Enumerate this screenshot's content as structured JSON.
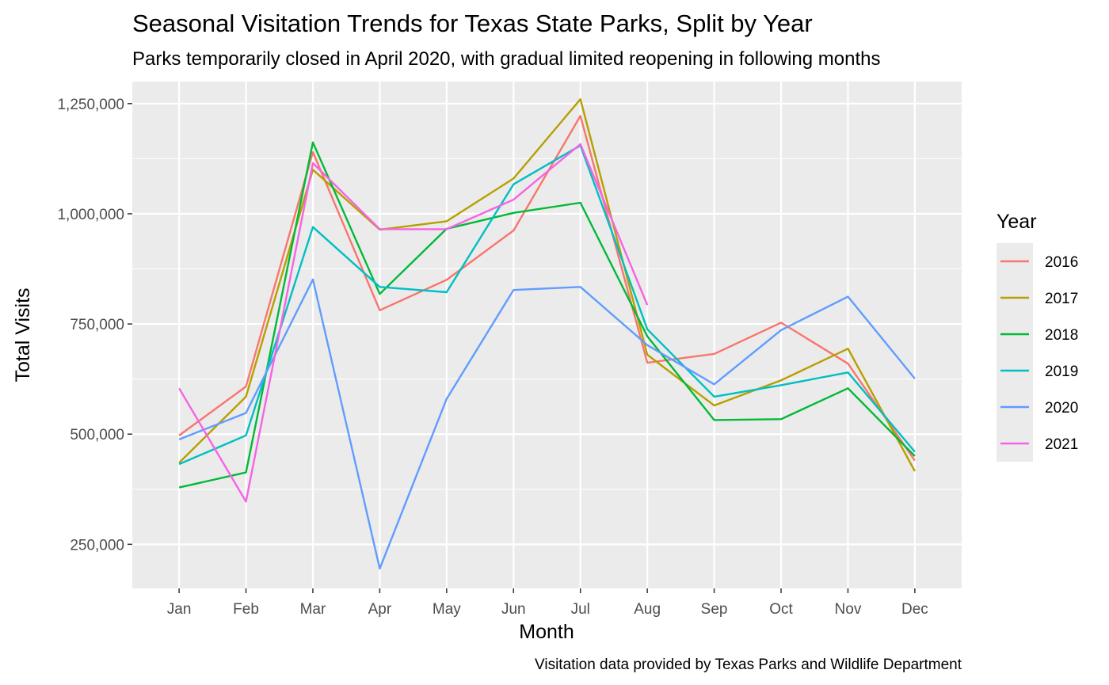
{
  "chart_data": {
    "type": "line",
    "title": "Seasonal Visitation Trends for Texas State Parks, Split by Year",
    "subtitle": "Parks temporarily closed in April 2020, with gradual limited reopening in following months",
    "caption": "Visitation data provided by Texas Parks and Wildlife Department",
    "xlabel": "Month",
    "ylabel": "Total Visits",
    "categories": [
      "Jan",
      "Feb",
      "Mar",
      "Apr",
      "May",
      "Jun",
      "Jul",
      "Aug",
      "Sep",
      "Oct",
      "Nov",
      "Dec"
    ],
    "ylim": [
      150000,
      1300000
    ],
    "yticks": [
      250000,
      500000,
      750000,
      1000000,
      1250000
    ],
    "ytick_labels": [
      "250,000",
      "500,000",
      "750,000",
      "1,000,000",
      "1,250,000"
    ],
    "grid": true,
    "legend": {
      "title": "Year",
      "position": "right"
    },
    "series": [
      {
        "name": "2016",
        "color": "#F8766D",
        "values": [
          497000,
          608000,
          1140000,
          781000,
          850000,
          962000,
          1222000,
          662000,
          682000,
          753000,
          660000,
          440000
        ]
      },
      {
        "name": "2017",
        "color": "#B79F00",
        "values": [
          435000,
          585000,
          1100000,
          964000,
          983000,
          1080000,
          1260000,
          680000,
          565000,
          622000,
          694000,
          416000
        ]
      },
      {
        "name": "2018",
        "color": "#00BA38",
        "values": [
          379000,
          413000,
          1162000,
          818000,
          966000,
          1002000,
          1025000,
          722000,
          532000,
          534000,
          604000,
          450000
        ]
      },
      {
        "name": "2019",
        "color": "#00BFC4",
        "values": [
          432000,
          497000,
          970000,
          834000,
          822000,
          1067000,
          1155000,
          738000,
          585000,
          611000,
          640000,
          460000
        ]
      },
      {
        "name": "2020",
        "color": "#619CFF",
        "values": [
          488000,
          548000,
          851000,
          195000,
          580000,
          827000,
          834000,
          702000,
          613000,
          736000,
          812000,
          626000
        ]
      },
      {
        "name": "2021",
        "color": "#F564E3",
        "values": [
          604000,
          347000,
          1115000,
          965000,
          965000,
          1032000,
          1158000,
          793000,
          null,
          null,
          null,
          null
        ]
      }
    ]
  }
}
